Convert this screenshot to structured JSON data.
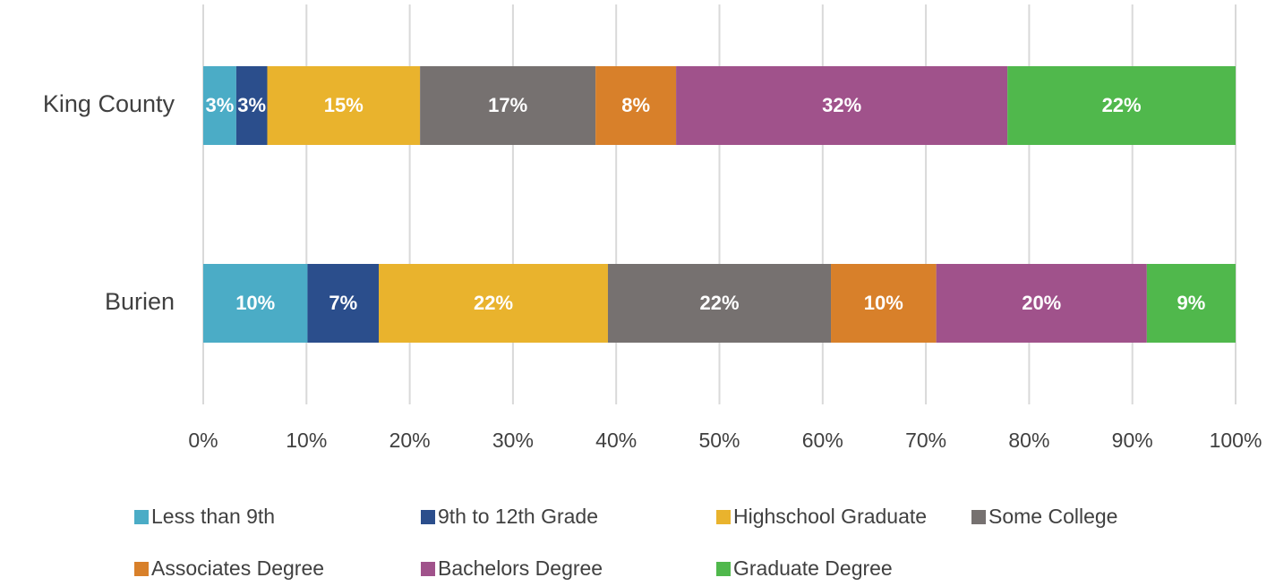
{
  "chart_data": {
    "type": "stacked-barh",
    "categories": [
      "King County",
      "Burien"
    ],
    "series": [
      {
        "name": "Less than 9th",
        "color": "#4bacc6",
        "values": [
          3.2,
          10.1
        ],
        "value_labels": [
          "3%",
          "10%"
        ]
      },
      {
        "name": "9th to 12th Grade",
        "color": "#2b4e8c",
        "values": [
          3.0,
          6.9
        ],
        "value_labels": [
          "3%",
          "7%"
        ]
      },
      {
        "name": "Highschool Graduate",
        "color": "#e9b32d",
        "values": [
          14.8,
          22.2
        ],
        "value_labels": [
          "15%",
          "22%"
        ]
      },
      {
        "name": "Some College",
        "color": "#767170",
        "values": [
          17.0,
          21.6
        ],
        "value_labels": [
          "17%",
          "22%"
        ]
      },
      {
        "name": "Associates Degree",
        "color": "#d8802a",
        "values": [
          7.8,
          10.2
        ],
        "value_labels": [
          "8%",
          "10%"
        ]
      },
      {
        "name": "Bachelors Degree",
        "color": "#a0528b",
        "values": [
          32.1,
          20.4
        ],
        "value_labels": [
          "32%",
          "20%"
        ]
      },
      {
        "name": "Graduate Degree",
        "color": "#50b84c",
        "values": [
          22.1,
          8.6
        ],
        "value_labels": [
          "22%",
          "9%"
        ]
      }
    ],
    "xlim": [
      0,
      100
    ],
    "xticks": [
      {
        "value": 0,
        "label": "0%"
      },
      {
        "value": 10,
        "label": "10%"
      },
      {
        "value": 20,
        "label": "20%"
      },
      {
        "value": 30,
        "label": "30%"
      },
      {
        "value": 40,
        "label": "40%"
      },
      {
        "value": 50,
        "label": "50%"
      },
      {
        "value": 60,
        "label": "60%"
      },
      {
        "value": 70,
        "label": "70%"
      },
      {
        "value": 80,
        "label": "80%"
      },
      {
        "value": 90,
        "label": "90%"
      },
      {
        "value": 100,
        "label": "100%"
      }
    ],
    "grid": true,
    "legend": "bottom"
  }
}
